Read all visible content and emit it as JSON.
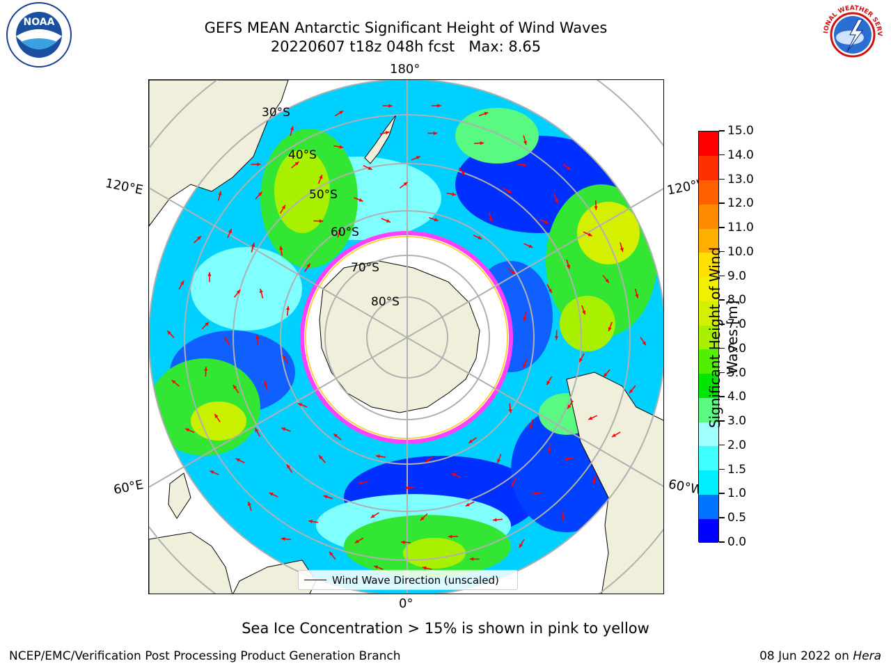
{
  "title": {
    "line1": "GEFS MEAN Antarctic Significant Height of Wind Waves",
    "line2": "20220607 t18z 048h fcst   Max: 8.65"
  },
  "logos": {
    "left": {
      "icon": "noaa-logo",
      "text": "NOAA"
    },
    "right": {
      "icon": "national-weather-service-logo",
      "text": "NATIONAL WEATHER SERVICE"
    }
  },
  "map": {
    "projection": "south-polar-stereographic",
    "lon_labels": {
      "top": "180°",
      "bottom": "0°",
      "left_upper": "120°E",
      "left_lower": "60°E",
      "right_upper": "120°W",
      "right_lower": "60°W"
    },
    "lat_labels": [
      "30°S",
      "40°S",
      "50°S",
      "60°S",
      "70°S",
      "80°S"
    ],
    "legend": "Wind Wave Direction (unscaled)",
    "arrow_color": "#ff0000",
    "land_color": "#efefdb"
  },
  "colorbar": {
    "title": "Significant Height of Wind Waves [m]",
    "ticks": [
      "0.0",
      "0.5",
      "1.0",
      "1.5",
      "2.0",
      "3.0",
      "4.0",
      "5.0",
      "6.0",
      "7.0",
      "8.0",
      "9.0",
      "10.0",
      "11.0",
      "12.0",
      "13.0",
      "14.0",
      "15.0"
    ],
    "colors": [
      "#0000ff",
      "#0073ff",
      "#00eeff",
      "#40ffff",
      "#a0ffff",
      "#5afa82",
      "#00e600",
      "#52f000",
      "#a8f000",
      "#d4f000",
      "#f0f000",
      "#ffe000",
      "#ffb000",
      "#ff8c00",
      "#ff6000",
      "#ff3000",
      "#ff0000"
    ]
  },
  "notes": {
    "sea_ice": "Sea Ice Concentration > 15% is shown in pink to yellow",
    "footer_left": "NCEP/EMC/Verification Post Processing Product Generation Branch",
    "footer_right_date": "08 Jun 2022 on ",
    "footer_right_host": "Hera"
  }
}
